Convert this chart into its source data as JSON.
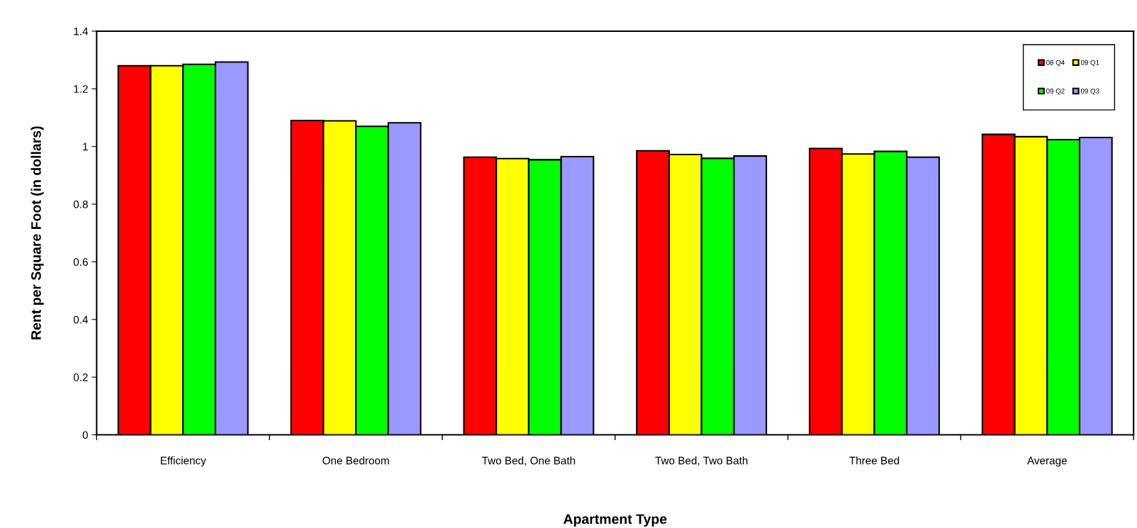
{
  "chart_data": {
    "type": "bar",
    "xlabel": "Apartment Type",
    "ylabel": "Rent per Square Foot (in dollars)",
    "categories": [
      "Efficiency",
      "One Bedroom",
      "Two Bed, One Bath",
      "Two Bed, Two Bath",
      "Three Bed",
      "Average"
    ],
    "series": [
      {
        "name": "08 Q4",
        "color": "#ff0000",
        "values": [
          1.28,
          1.09,
          0.963,
          0.985,
          0.993,
          1.042
        ]
      },
      {
        "name": "09 Q1",
        "color": "#ffff00",
        "values": [
          1.28,
          1.089,
          0.958,
          0.972,
          0.974,
          1.034
        ]
      },
      {
        "name": "09 Q2",
        "color": "#00ff00",
        "values": [
          1.285,
          1.07,
          0.954,
          0.959,
          0.983,
          1.024
        ]
      },
      {
        "name": "09 Q3",
        "color": "#9999ff",
        "values": [
          1.293,
          1.082,
          0.965,
          0.967,
          0.963,
          1.031
        ]
      }
    ],
    "ylim": [
      0,
      1.4
    ],
    "yticks": [
      0,
      0.2,
      0.4,
      0.6,
      0.8,
      1,
      1.2,
      1.4
    ],
    "grid": false,
    "legend": "top right"
  }
}
